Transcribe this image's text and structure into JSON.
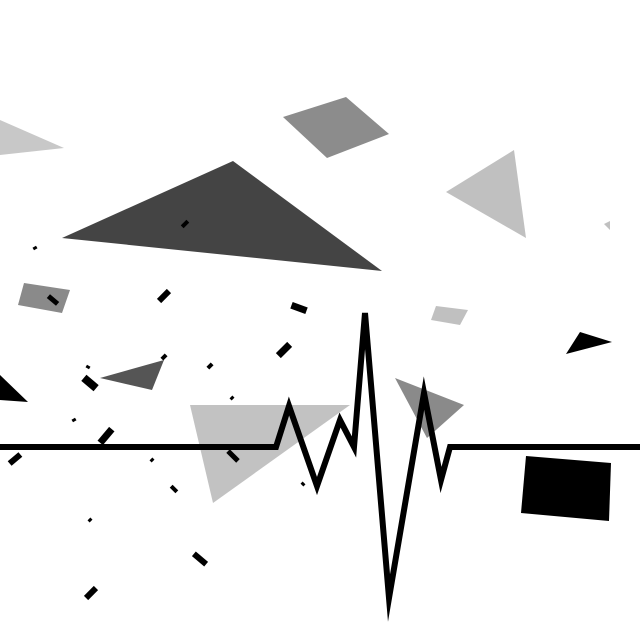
{
  "image": {
    "description": "",
    "background_color": "#ffffff",
    "line_color": "#000000",
    "shape_colors": {
      "light_gray": "#c2c2c2",
      "mid_gray": "#8a8a8a",
      "dark_gray": "#444444",
      "black": "#000000"
    }
  }
}
